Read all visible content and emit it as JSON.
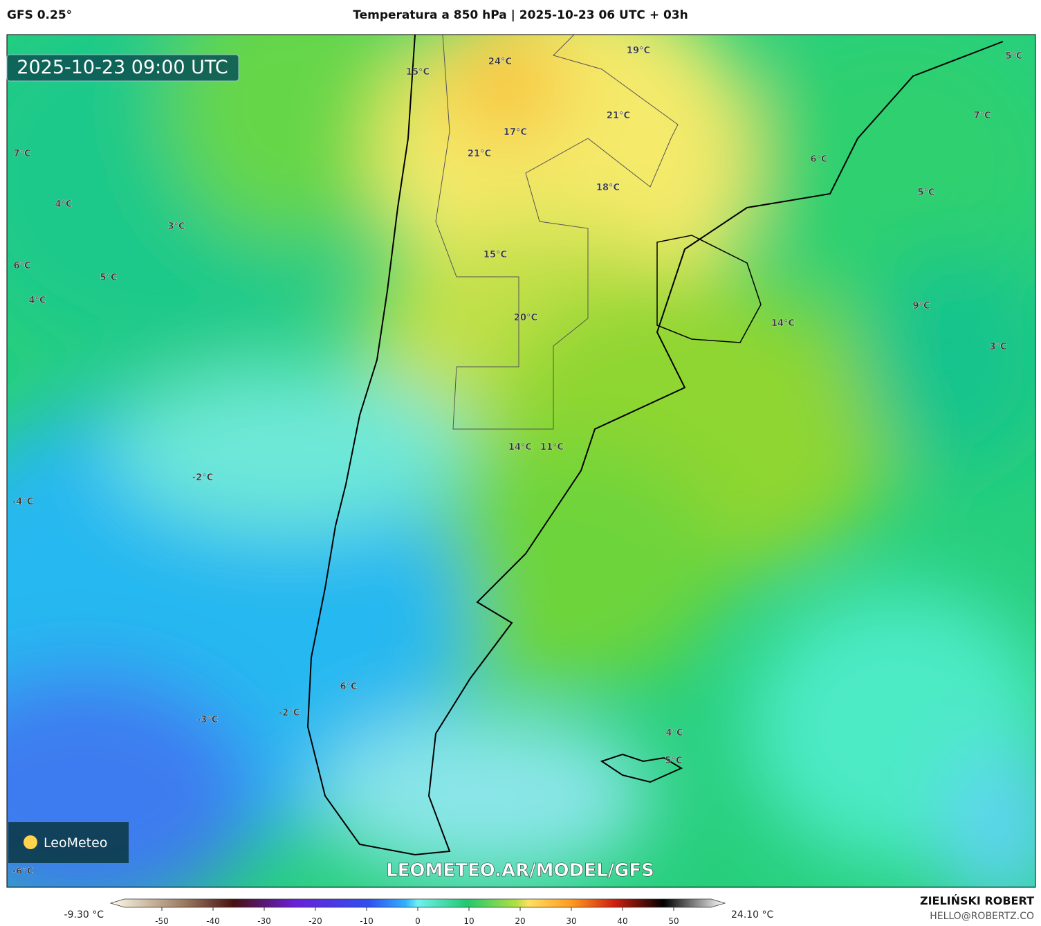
{
  "header": {
    "model": "GFS 0.25°",
    "title": "Temperatura a 850 hPa | 2025-10-23 06 UTC + 03h"
  },
  "map": {
    "timestamp": "2025-10-23 09:00 UTC",
    "watermark": "LEOMETEO.AR/MODEL/GFS",
    "logo": "LeoMeteo",
    "labels": [
      "24°C",
      "19°C",
      "15°C",
      "5°C",
      "21°C",
      "17°C",
      "21°C",
      "7°C",
      "6°C",
      "7°C",
      "18°C",
      "5°C",
      "4°C",
      "3°C",
      "6°C",
      "15°C",
      "5°C",
      "4°C",
      "20°C",
      "9°C",
      "14°C",
      "3°C",
      "14°C",
      "11°C",
      "-2°C",
      "-4°C",
      "6°C",
      "-2°C",
      "-3°C",
      "4°C",
      "5°C",
      "-6°C"
    ]
  },
  "colorbar": {
    "min_label": "-9.30 °C",
    "max_label": "24.10 °C",
    "range": [
      -60,
      60
    ],
    "ticks": [
      -50,
      -40,
      -30,
      -20,
      -10,
      0,
      10,
      20,
      30,
      40,
      50
    ]
  },
  "credits": {
    "author": "ZIELIŃSKI ROBERT",
    "email": "HELLO@ROBERTZ.CO"
  }
}
